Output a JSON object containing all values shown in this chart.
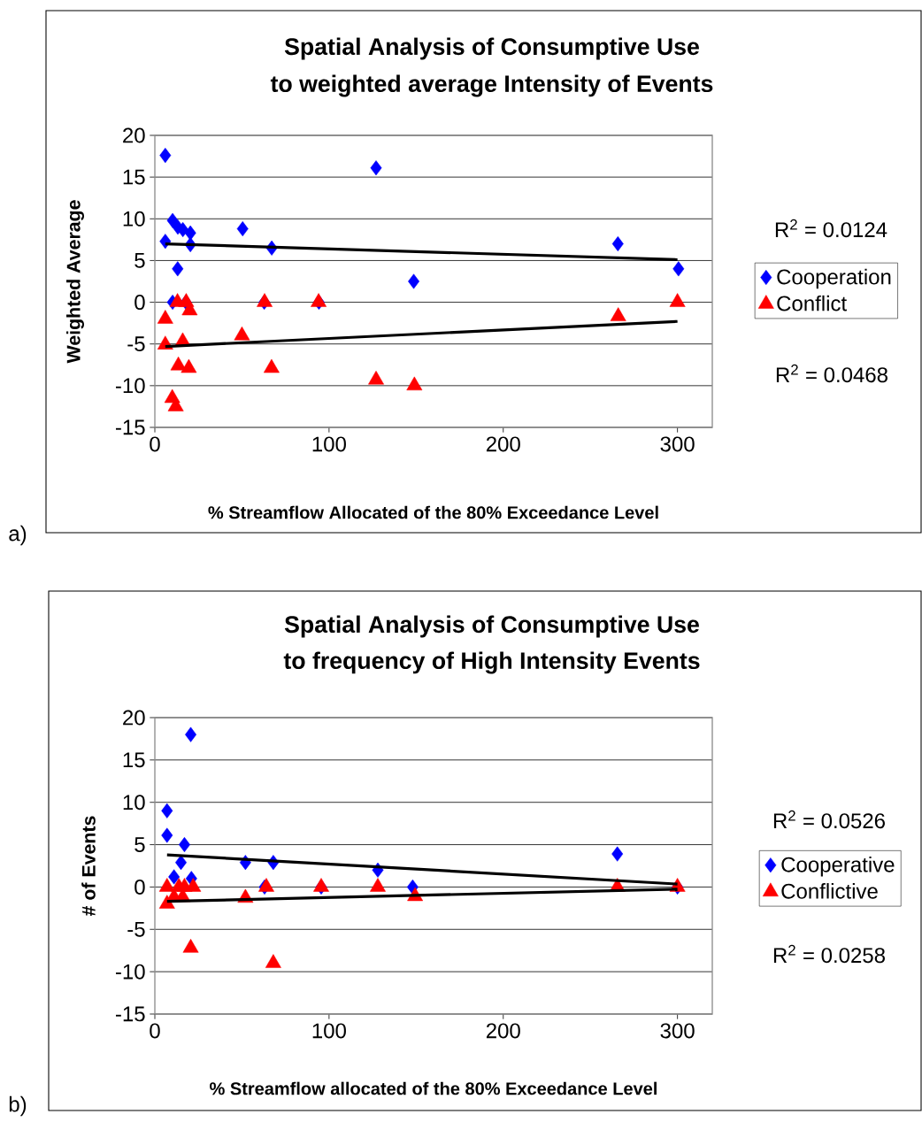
{
  "chart_data": [
    {
      "type": "scatter",
      "title": "Spatial Analysis of Consumptive Use",
      "subtitle": "to weighted average Intensity of Events",
      "xlabel": "% Streamflow Allocated of the 80% Exceedance Level",
      "ylabel": "Weighted Average",
      "xlim": [
        0,
        320
      ],
      "ylim": [
        -15,
        20
      ],
      "xticks": [
        0,
        100,
        200,
        300
      ],
      "yticks": [
        -15,
        -10,
        -5,
        0,
        5,
        10,
        15,
        20
      ],
      "grid": "y",
      "legend": "right",
      "annotations": [
        "R$^{2}$ = 0.0124",
        "R$^{2}$ = 0.0468",
        "a)"
      ],
      "series": [
        {
          "name": "Cooperation",
          "color": "#0000ff",
          "marker": "diamond",
          "x": [
            6,
            10.2,
            13.2,
            16.1,
            20.4,
            6,
            20.4,
            13.1,
            10.2,
            17.8,
            50.4,
            67.1,
            62.8,
            94.2,
            127,
            148.6,
            265.8,
            300.6
          ],
          "values": [
            17.6,
            9.8,
            9.0,
            8.7,
            8.3,
            7.3,
            6.9,
            4.0,
            0,
            0,
            8.8,
            6.5,
            0,
            0,
            16.1,
            2.5,
            7.0,
            4.0
          ]
        },
        {
          "name": "Conflict",
          "color": "#ff0000",
          "marker": "triangle",
          "x": [
            6,
            6,
            13,
            18,
            20,
            16,
            13.5,
            19.5,
            10,
            12,
            50,
            63,
            67,
            94,
            127,
            149,
            266,
            300
          ],
          "values": [
            -2,
            -5.1,
            0,
            0,
            -1.0,
            -4.7,
            -7.6,
            -7.9,
            -11.5,
            -12.5,
            -4.0,
            0,
            -7.9,
            0,
            -9.3,
            -10,
            -1.7,
            0
          ]
        },
        {
          "type": "line",
          "color": "#000000",
          "x": [
            6,
            300
          ],
          "values": [
            7.0,
            5.1
          ]
        },
        {
          "type": "line",
          "color": "#000000",
          "x": [
            6,
            300
          ],
          "values": [
            -5.3,
            -2.3
          ]
        }
      ]
    },
    {
      "type": "scatter",
      "title": "Spatial Analysis of Consumptive Use",
      "subtitle": "to frequency of High Intensity Events",
      "xlabel": "% Streamflow allocated of the 80% Exceedance Level",
      "ylabel": "# of  Events",
      "xlim": [
        0,
        320
      ],
      "ylim": [
        -15,
        20
      ],
      "xticks": [
        0,
        100,
        200,
        300
      ],
      "yticks": [
        -15,
        -10,
        -5,
        0,
        5,
        10,
        15,
        20
      ],
      "grid": "y",
      "legend": "right",
      "annotations": [
        "R$^{2}$ = 0.0526",
        "R$^{2}$ = 0.0258",
        "b)"
      ],
      "series": [
        {
          "name": "Cooperative",
          "color": "#0000ff",
          "marker": "diamond",
          "x": [
            7,
            7,
            17,
            15,
            11,
            21,
            20.6,
            52,
            68,
            63,
            95.5,
            128,
            148,
            265.5,
            300
          ],
          "values": [
            9.0,
            6.1,
            5.0,
            2.9,
            1.2,
            1.0,
            18.0,
            2.9,
            2.9,
            0,
            0,
            2.0,
            0,
            3.9,
            0
          ]
        },
        {
          "name": "Conflictive",
          "color": "#ff0000",
          "marker": "triangle",
          "x": [
            7,
            13.8,
            17,
            22,
            11,
            16,
            7,
            20.6,
            68,
            52,
            64,
            95.5,
            128,
            149.4,
            265.5,
            300
          ],
          "values": [
            0,
            0,
            0,
            0,
            -1.2,
            -1.2,
            -2.0,
            -7.2,
            -9.0,
            -1.3,
            0,
            0,
            0,
            -1.1,
            0,
            0
          ]
        },
        {
          "type": "line",
          "color": "#000000",
          "x": [
            7,
            300
          ],
          "values": [
            3.8,
            0.35
          ]
        },
        {
          "type": "line",
          "color": "#000000",
          "x": [
            7,
            300
          ],
          "values": [
            -1.7,
            -0.25
          ]
        }
      ]
    }
  ]
}
